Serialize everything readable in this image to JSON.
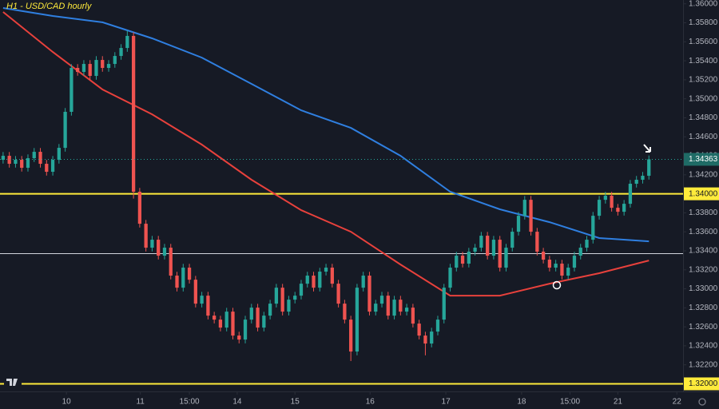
{
  "chart_data": {
    "type": "candlestick",
    "title": "H1 - USD/CAD hourly",
    "up_color": "#26a69a",
    "down_color": "#ef5350",
    "xlim": [
      0,
      110
    ],
    "ylim": [
      1.3192,
      1.3604
    ],
    "yticks": [
      {
        "value": 1.32,
        "label": "1.32000"
      },
      {
        "value": 1.322,
        "label": "1.32200"
      },
      {
        "value": 1.324,
        "label": "1.32400"
      },
      {
        "value": 1.326,
        "label": "1.32600"
      },
      {
        "value": 1.328,
        "label": "1.32800"
      },
      {
        "value": 1.33,
        "label": "1.33000"
      },
      {
        "value": 1.332,
        "label": "1.33200"
      },
      {
        "value": 1.334,
        "label": "1.33400"
      },
      {
        "value": 1.336,
        "label": "1.33600"
      },
      {
        "value": 1.338,
        "label": "1.33800"
      },
      {
        "value": 1.34,
        "label": "1.34000"
      },
      {
        "value": 1.342,
        "label": "1.34200"
      },
      {
        "value": 1.344,
        "label": "1.34400"
      },
      {
        "value": 1.346,
        "label": "1.34600"
      },
      {
        "value": 1.348,
        "label": "1.34800"
      },
      {
        "value": 1.35,
        "label": "1.35000"
      },
      {
        "value": 1.352,
        "label": "1.35200"
      },
      {
        "value": 1.354,
        "label": "1.35400"
      },
      {
        "value": 1.356,
        "label": "1.35600"
      },
      {
        "value": 1.358,
        "label": "1.35800"
      },
      {
        "value": 1.36,
        "label": "1.36000"
      }
    ],
    "xticks": [
      {
        "value": 10.7,
        "label": "10"
      },
      {
        "value": 22.6,
        "label": "11"
      },
      {
        "value": 30.5,
        "label": "15:00"
      },
      {
        "value": 38.2,
        "label": "14"
      },
      {
        "value": 47.5,
        "label": "15"
      },
      {
        "value": 59.6,
        "label": "16"
      },
      {
        "value": 71.8,
        "label": "17"
      },
      {
        "value": 84,
        "label": "18"
      },
      {
        "value": 91.8,
        "label": "15:00"
      },
      {
        "value": 99.5,
        "label": "21"
      },
      {
        "value": 109,
        "label": "22"
      }
    ],
    "open": [
      1.34358,
      1.344,
      1.34316,
      1.34358,
      1.34274,
      1.34375,
      1.34442,
      1.34316,
      1.34232,
      1.34358,
      1.34484,
      1.34863,
      1.35325,
      1.35283,
      1.35367,
      1.35241,
      1.35409,
      1.35325,
      1.35367,
      1.35451,
      1.35535,
      1.35662,
      1.34022,
      1.33685,
      1.33433,
      1.33517,
      1.33349,
      1.33433,
      1.33139,
      1.33012,
      1.33223,
      1.33096,
      1.32844,
      1.32928,
      1.32718,
      1.32676,
      1.32592,
      1.3276,
      1.32508,
      1.32466,
      1.32676,
      1.32802,
      1.32592,
      1.32718,
      1.32844,
      1.33012,
      1.3276,
      1.32886,
      1.32928,
      1.33054,
      1.33139,
      1.33012,
      1.33181,
      1.33223,
      1.33054,
      1.32844,
      1.32676,
      1.3234,
      1.33012,
      1.33139,
      1.3276,
      1.32844,
      1.32928,
      1.32718,
      1.32886,
      1.3276,
      1.32802,
      1.32634,
      1.32508,
      1.32424,
      1.3255,
      1.32676,
      1.33012,
      1.33223,
      1.33349,
      1.33265,
      1.33391,
      1.33433,
      1.33559,
      1.33349,
      1.33517,
      1.33223,
      1.33433,
      1.33601,
      1.33769,
      1.33937,
      1.33601,
      1.33391,
      1.33307,
      1.33223,
      1.33265,
      1.33139,
      1.33223,
      1.33349,
      1.33433,
      1.33517,
      1.33769,
      1.33937,
      1.3398,
      1.33853,
      1.33811,
      1.33895,
      1.34106,
      1.34148,
      1.3419
    ],
    "high": [
      1.3444,
      1.3444,
      1.34398,
      1.34398,
      1.34415,
      1.34482,
      1.34482,
      1.34356,
      1.34398,
      1.34524,
      1.34903,
      1.35365,
      1.35365,
      1.35407,
      1.35407,
      1.35449,
      1.35449,
      1.35407,
      1.35491,
      1.35575,
      1.3572,
      1.35702,
      1.34062,
      1.33725,
      1.33557,
      1.33557,
      1.33473,
      1.33473,
      1.33179,
      1.33263,
      1.33263,
      1.33136,
      1.32968,
      1.32968,
      1.32758,
      1.32716,
      1.328,
      1.328,
      1.32548,
      1.32716,
      1.32842,
      1.32842,
      1.32758,
      1.32884,
      1.33052,
      1.33052,
      1.32926,
      1.32968,
      1.33094,
      1.33179,
      1.33179,
      1.33221,
      1.33263,
      1.33263,
      1.33094,
      1.32884,
      1.32716,
      1.33052,
      1.33179,
      1.33179,
      1.32884,
      1.32968,
      1.32968,
      1.32926,
      1.32926,
      1.32842,
      1.32842,
      1.32674,
      1.32548,
      1.3259,
      1.32716,
      1.33052,
      1.33263,
      1.33389,
      1.33389,
      1.33431,
      1.33473,
      1.33599,
      1.33599,
      1.33557,
      1.33557,
      1.33473,
      1.33641,
      1.33809,
      1.33977,
      1.33977,
      1.33641,
      1.33431,
      1.33347,
      1.33305,
      1.33305,
      1.33263,
      1.33389,
      1.33473,
      1.33557,
      1.33809,
      1.33977,
      1.3402,
      1.3402,
      1.33893,
      1.33935,
      1.34146,
      1.34188,
      1.3423,
      1.34403
    ],
    "low": [
      1.34318,
      1.34276,
      1.34276,
      1.34234,
      1.34234,
      1.34335,
      1.34276,
      1.34192,
      1.34192,
      1.34318,
      1.34444,
      1.34823,
      1.35243,
      1.35243,
      1.35201,
      1.35201,
      1.35285,
      1.35285,
      1.35327,
      1.35411,
      1.35495,
      1.3395,
      1.33645,
      1.33393,
      1.33393,
      1.33309,
      1.33309,
      1.33099,
      1.32972,
      1.32972,
      1.33056,
      1.32804,
      1.32804,
      1.32678,
      1.32636,
      1.32552,
      1.32552,
      1.32468,
      1.32426,
      1.32426,
      1.32636,
      1.32552,
      1.32552,
      1.32678,
      1.32804,
      1.3272,
      1.3272,
      1.32846,
      1.32888,
      1.33014,
      1.32972,
      1.32972,
      1.33141,
      1.33014,
      1.32804,
      1.32636,
      1.3224,
      1.323,
      1.32972,
      1.3272,
      1.3272,
      1.32804,
      1.32678,
      1.32678,
      1.3272,
      1.3272,
      1.32594,
      1.32468,
      1.323,
      1.32384,
      1.3251,
      1.32636,
      1.32972,
      1.33183,
      1.33225,
      1.33225,
      1.33351,
      1.33393,
      1.33309,
      1.33309,
      1.33183,
      1.33183,
      1.33393,
      1.33561,
      1.33729,
      1.33561,
      1.33351,
      1.33267,
      1.33183,
      1.33183,
      1.33099,
      1.33099,
      1.33183,
      1.33309,
      1.33393,
      1.33477,
      1.33729,
      1.33897,
      1.33813,
      1.33771,
      1.33771,
      1.33855,
      1.34066,
      1.34108,
      1.3415
    ],
    "close": [
      1.344,
      1.34316,
      1.34358,
      1.34274,
      1.34375,
      1.34442,
      1.34316,
      1.34232,
      1.34358,
      1.34484,
      1.34863,
      1.35325,
      1.35283,
      1.35367,
      1.35241,
      1.35409,
      1.35325,
      1.35367,
      1.35451,
      1.35535,
      1.35662,
      1.34022,
      1.33685,
      1.33433,
      1.33517,
      1.33349,
      1.33433,
      1.33139,
      1.33012,
      1.33223,
      1.33096,
      1.32844,
      1.32928,
      1.32718,
      1.32676,
      1.32592,
      1.3276,
      1.32508,
      1.32466,
      1.32676,
      1.32802,
      1.32592,
      1.32718,
      1.32844,
      1.33012,
      1.3276,
      1.32886,
      1.32928,
      1.33054,
      1.33139,
      1.33012,
      1.33181,
      1.33223,
      1.33054,
      1.32844,
      1.32676,
      1.3234,
      1.33012,
      1.33139,
      1.3276,
      1.32844,
      1.32928,
      1.32718,
      1.32886,
      1.3276,
      1.32802,
      1.32634,
      1.32508,
      1.32424,
      1.3255,
      1.32676,
      1.33012,
      1.33223,
      1.33349,
      1.33265,
      1.33391,
      1.33433,
      1.33559,
      1.33349,
      1.33517,
      1.33223,
      1.33433,
      1.33601,
      1.33769,
      1.33937,
      1.33601,
      1.33391,
      1.33307,
      1.33223,
      1.33265,
      1.33139,
      1.33223,
      1.33349,
      1.33433,
      1.33517,
      1.33769,
      1.33937,
      1.3398,
      1.33853,
      1.33811,
      1.33895,
      1.34106,
      1.34148,
      1.3419,
      1.34363
    ],
    "lines": [
      {
        "color": "#e8413c",
        "x": [
          0,
          8,
          16,
          24,
          32,
          40,
          48,
          56,
          64,
          72,
          80,
          88,
          96,
          104
        ],
        "values": [
          1.35914,
          1.35493,
          1.35098,
          1.34837,
          1.34518,
          1.34148,
          1.33828,
          1.33601,
          1.33256,
          1.32928,
          1.32928,
          1.33054,
          1.33164,
          1.33298
        ]
      },
      {
        "color": "#2f7fe0",
        "x": [
          0,
          8,
          16,
          24,
          32,
          40,
          48,
          56,
          64,
          72,
          80,
          88,
          96,
          104
        ],
        "values": [
          1.35956,
          1.35872,
          1.35805,
          1.35636,
          1.35434,
          1.35157,
          1.34879,
          1.34694,
          1.344,
          1.34022,
          1.33837,
          1.33702,
          1.33534,
          1.335
        ]
      }
    ],
    "levels": [
      {
        "value": 1.34,
        "label": "1.34000",
        "color": "#ffeb3b"
      },
      {
        "value": 1.32,
        "label": "1.32000",
        "color": "#ffeb3b"
      },
      {
        "value": 1.3337,
        "color": "#d1d4dc"
      }
    ],
    "last_color": "#1f6b66"
  }
}
